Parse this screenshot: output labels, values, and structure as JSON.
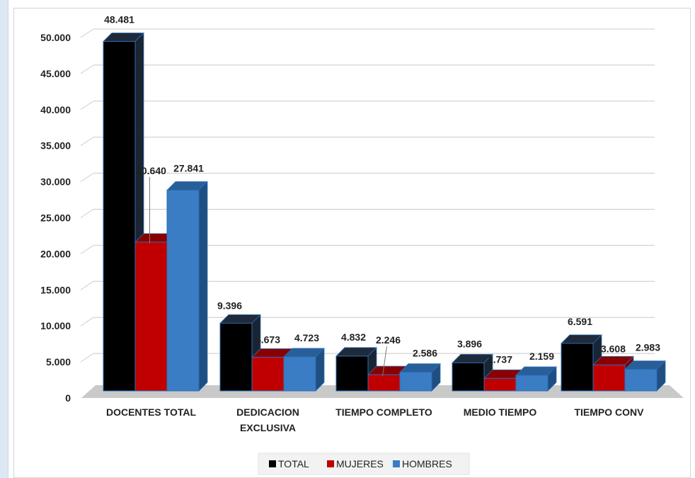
{
  "chart_data": {
    "type": "bar",
    "categories": [
      [
        "DOCENTES TOTAL"
      ],
      [
        "DEDICACION",
        "EXCLUSIVA"
      ],
      [
        "TIEMPO COMPLETO"
      ],
      [
        "MEDIO TIEMPO"
      ],
      [
        "TIEMPO CONV"
      ]
    ],
    "series": [
      {
        "name": "TOTAL",
        "color": "#000000",
        "side": "#1a2433",
        "top": "#1f2a3a",
        "values": [
          48481,
          9396,
          4832,
          3896,
          6591
        ],
        "labels": [
          "48.481",
          "9.396",
          "4.832",
          "3.896",
          "6.591"
        ]
      },
      {
        "name": "MUJERES",
        "color": "#c00000",
        "side": "#7a0000",
        "top": "#8a0000",
        "values": [
          20640,
          4673,
          2246,
          1737,
          3608
        ],
        "labels": [
          "20.640",
          "4.673",
          "2.246",
          "1.737",
          "3.608"
        ]
      },
      {
        "name": "HOMBRES",
        "color": "#3a7dc4",
        "side": "#1f4e80",
        "top": "#285f99",
        "values": [
          27841,
          4723,
          2586,
          2159,
          2983
        ],
        "labels": [
          "27.841",
          "4.723",
          "2.586",
          "2.159",
          "2.983"
        ]
      }
    ],
    "yticks": [
      "0",
      "5.000",
      "10.000",
      "15.000",
      "20.000",
      "25.000",
      "30.000",
      "35.000",
      "40.000",
      "45.000",
      "50.000"
    ],
    "ylim": [
      0,
      50000
    ],
    "grid": true,
    "legend": "bottom-center"
  }
}
